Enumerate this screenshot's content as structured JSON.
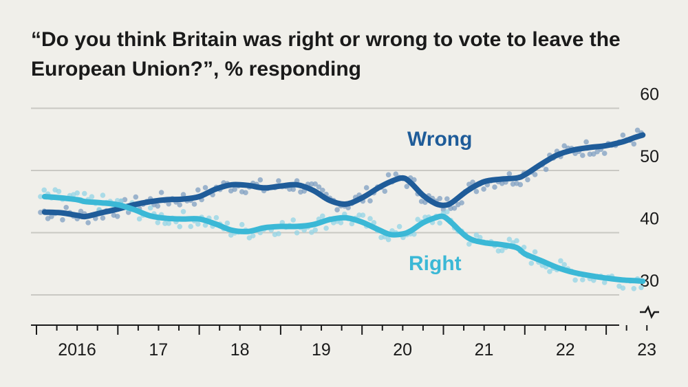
{
  "title": {
    "question": "“Do you think Britain was right or wrong to vote to leave the European Union?”",
    "unit": ", % responding"
  },
  "chart_data": {
    "type": "line",
    "title": "“Do you think Britain was right or wrong to vote to leave the European Union?”, % responding",
    "ylabel": "% responding",
    "ylim": [
      25,
      60
    ],
    "y_axis_break": true,
    "yticks": [
      30,
      40,
      50,
      60
    ],
    "xlim": [
      2016.0,
      2023.7
    ],
    "x_tick_labels": [
      {
        "x": 2016,
        "label": "2016"
      },
      {
        "x": 2017,
        "label": "17"
      },
      {
        "x": 2018,
        "label": "18"
      },
      {
        "x": 2019,
        "label": "19"
      },
      {
        "x": 2020,
        "label": "20"
      },
      {
        "x": 2021,
        "label": "21"
      },
      {
        "x": 2022,
        "label": "22"
      },
      {
        "x": 2023,
        "label": "23"
      }
    ],
    "series": [
      {
        "name": "Wrong",
        "color": "#1f5c99",
        "dot_color": "#7f9fc2",
        "x": [
          2016.1,
          2016.3,
          2016.5,
          2016.6,
          2016.8,
          2017.0,
          2017.2,
          2017.4,
          2017.6,
          2017.8,
          2018.0,
          2018.2,
          2018.4,
          2018.6,
          2018.8,
          2019.0,
          2019.2,
          2019.4,
          2019.6,
          2019.8,
          2020.0,
          2020.2,
          2020.35,
          2020.5,
          2020.6,
          2020.75,
          2020.9,
          2021.0,
          2021.1,
          2021.3,
          2021.5,
          2021.7,
          2021.9,
          2022.0,
          2022.2,
          2022.4,
          2022.6,
          2022.8,
          2023.0,
          2023.2,
          2023.35,
          2023.45
        ],
        "values": [
          43.3,
          43.2,
          42.8,
          42.6,
          43.2,
          43.8,
          44.5,
          45.0,
          45.3,
          45.4,
          45.8,
          47.0,
          47.7,
          47.6,
          47.2,
          47.5,
          47.7,
          46.8,
          45.2,
          44.6,
          45.6,
          47.2,
          48.2,
          48.8,
          48.0,
          46.0,
          44.7,
          44.4,
          44.8,
          46.8,
          48.2,
          48.6,
          48.8,
          49.3,
          51.0,
          52.5,
          53.3,
          53.7,
          54.0,
          54.6,
          55.3,
          55.7
        ]
      },
      {
        "name": "Right",
        "color": "#3bb8d6",
        "dot_color": "#93d4e6",
        "x": [
          2016.1,
          2016.3,
          2016.5,
          2016.6,
          2016.8,
          2017.0,
          2017.2,
          2017.4,
          2017.6,
          2017.8,
          2018.0,
          2018.2,
          2018.4,
          2018.6,
          2018.8,
          2019.0,
          2019.2,
          2019.4,
          2019.6,
          2019.8,
          2020.0,
          2020.2,
          2020.35,
          2020.5,
          2020.6,
          2020.75,
          2020.9,
          2021.0,
          2021.1,
          2021.3,
          2021.5,
          2021.7,
          2021.9,
          2022.0,
          2022.2,
          2022.4,
          2022.6,
          2022.8,
          2023.0,
          2023.2,
          2023.35,
          2023.45
        ],
        "values": [
          45.8,
          45.6,
          45.3,
          45.0,
          44.8,
          44.5,
          43.7,
          42.7,
          42.3,
          42.2,
          42.2,
          41.4,
          40.4,
          40.2,
          40.8,
          41.0,
          41.0,
          41.3,
          42.1,
          42.4,
          41.7,
          40.5,
          39.7,
          39.8,
          40.3,
          41.6,
          42.4,
          42.6,
          41.6,
          39.2,
          38.4,
          38.1,
          37.6,
          36.6,
          35.5,
          34.4,
          33.6,
          33.1,
          32.7,
          32.4,
          32.3,
          32.2
        ]
      }
    ],
    "annotations": [
      "Wrong",
      "Right"
    ]
  }
}
